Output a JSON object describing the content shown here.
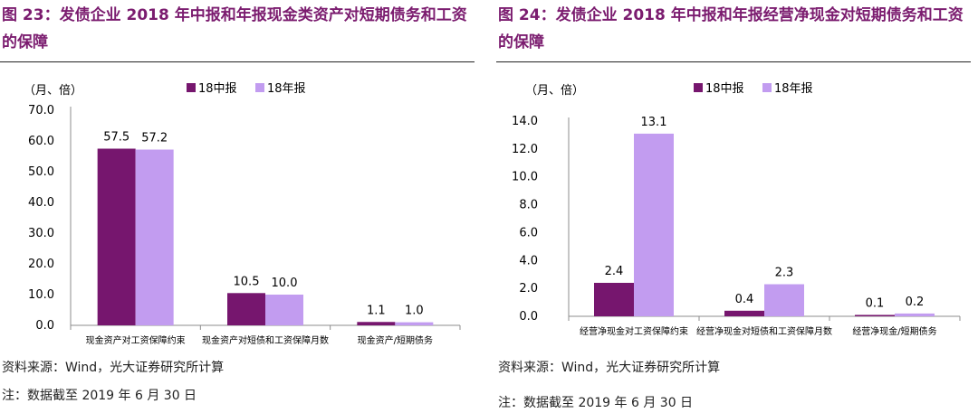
{
  "colors": {
    "mid": "#76166e",
    "annual": "#c29cf0",
    "title": "#7b1c6f"
  },
  "panels": [
    {
      "title": "图 23：发债企业 2018 年中报和年报现金类资产对短期债务和工资的保障",
      "source": "资料来源：Wind，光大证券研究所计算",
      "note": "注：数据截至 2019 年 6 月 30 日"
    },
    {
      "title": "图 24：发债企业 2018 年中报和年报经营净现金对短期债务和工资的保障",
      "source": "资料来源：Wind，光大证券研究所计算",
      "note": "注：数据截至 2019 年 6 月 30 日"
    }
  ],
  "chart_data": [
    {
      "type": "bar",
      "ylabel": "（月、倍）",
      "categories": [
        "现金资产对工资保障约束",
        "现金资产对短债和工资保障月数",
        "现金资产/短期债务"
      ],
      "series": [
        {
          "name": "18中报",
          "values": [
            57.5,
            10.5,
            1.1
          ]
        },
        {
          "name": "18年报",
          "values": [
            57.2,
            10.0,
            1.0
          ]
        }
      ],
      "ylim": [
        0,
        70
      ],
      "yticks": [
        0,
        10,
        20,
        30,
        40,
        50,
        60,
        70
      ],
      "legend": "top"
    },
    {
      "type": "bar",
      "ylabel": "（月、倍）",
      "categories": [
        "经营净现金对工资保障约束",
        "经营净现金对短债和工资保障月数",
        "经营净现金/短期债务"
      ],
      "series": [
        {
          "name": "18中报",
          "values": [
            2.4,
            0.4,
            0.1
          ]
        },
        {
          "name": "18年报",
          "values": [
            13.1,
            2.3,
            0.2
          ]
        }
      ],
      "ylim": [
        0,
        14
      ],
      "yticks": [
        0,
        2,
        4,
        6,
        8,
        10,
        12,
        14
      ],
      "legend": "top"
    }
  ]
}
